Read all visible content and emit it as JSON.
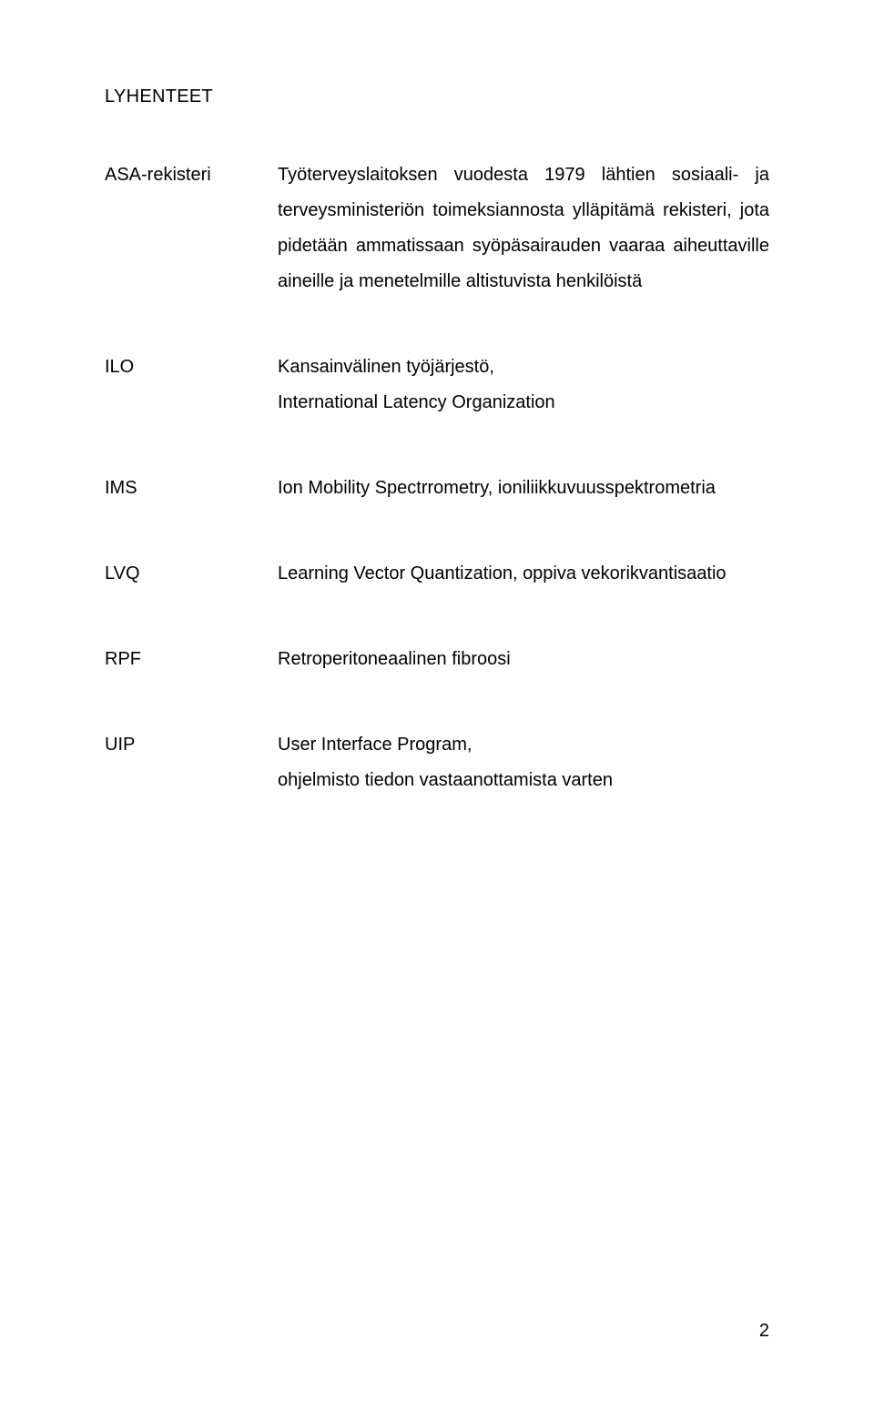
{
  "page": {
    "title": "LYHENTEET",
    "pageNumber": "2"
  },
  "definitions": [
    {
      "term": "ASA-rekisteri",
      "description": "Työterveyslaitoksen vuodesta 1979 lähtien sosiaali- ja terveysministeriön toimeksiannosta ylläpitämä rekisteri, jota pidetään ammatissaan syöpäsairauden vaaraa aiheuttaville aineille ja menetelmille altistuvista henkilöistä",
      "justify": true
    },
    {
      "term": "ILO",
      "description": "Kansainvälinen työjärjestö,\nInternational Latency Organization",
      "justify": false
    },
    {
      "term": "IMS",
      "description": "Ion Mobility Spectrrometry, ioniliikkuvuusspektrometria",
      "justify": false
    },
    {
      "term": "LVQ",
      "description": "Learning Vector Quantization, oppiva vekorikvantisaatio",
      "justify": false
    },
    {
      "term": "RPF",
      "description": "Retroperitoneaalinen fibroosi",
      "justify": false
    },
    {
      "term": "UIP",
      "description": "User Interface Program,\nohjelmisto tiedon vastaanottamista varten",
      "justify": false
    }
  ]
}
